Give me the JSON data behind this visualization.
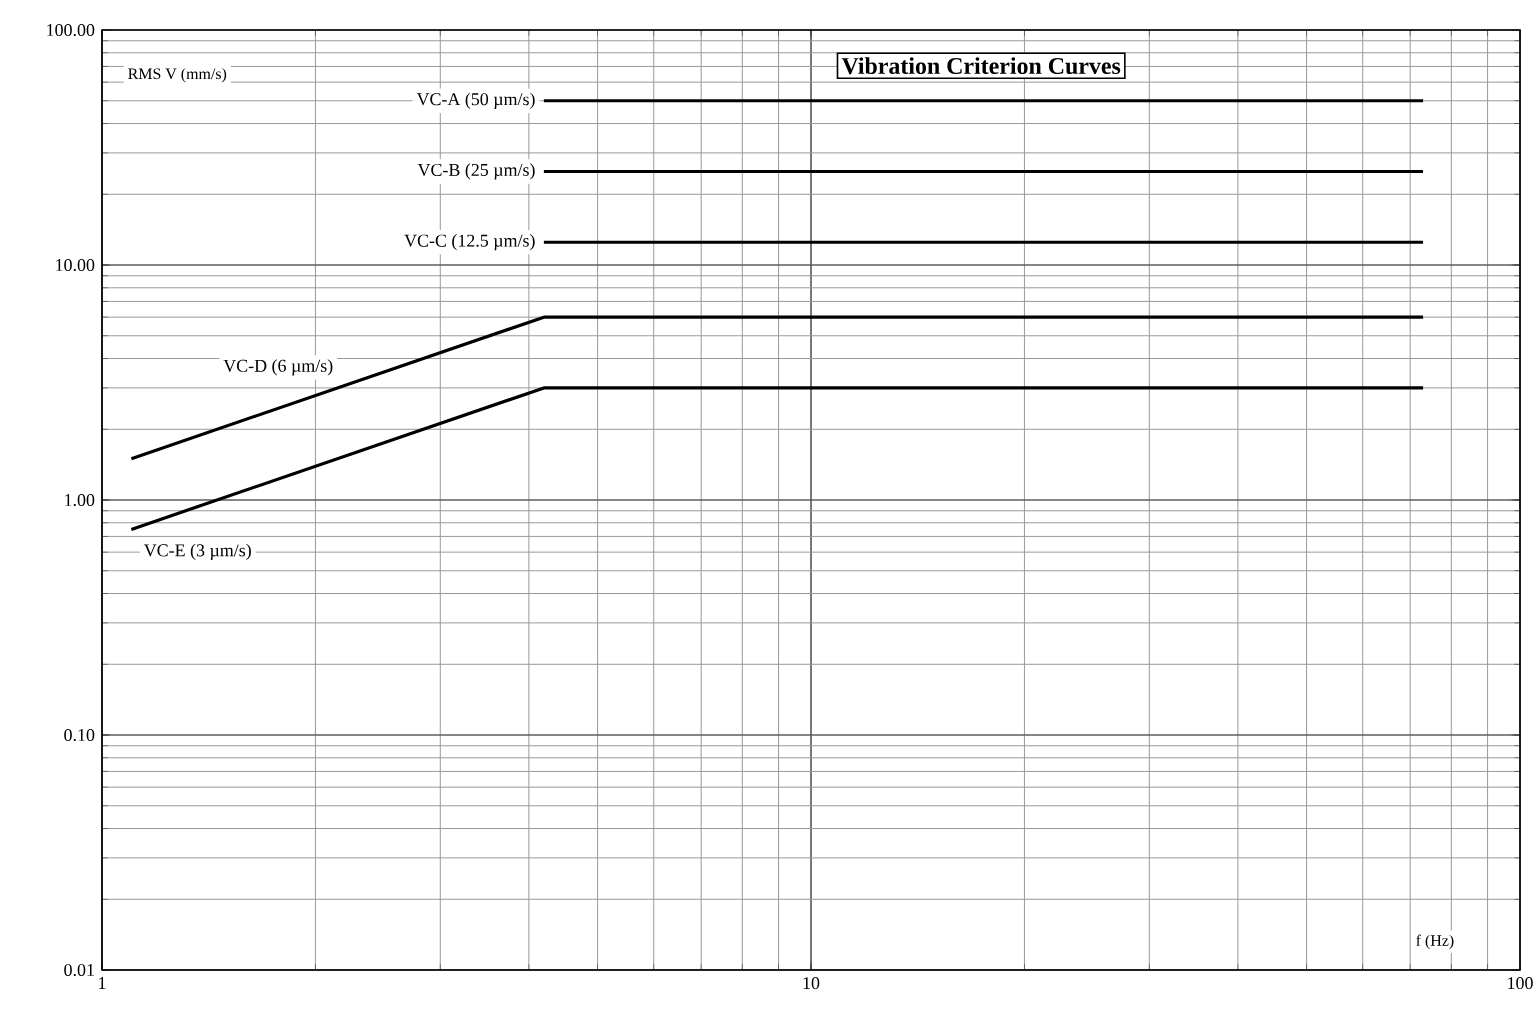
{
  "chart_data": {
    "type": "line",
    "title": "Vibration Criterion Curves",
    "xlabel": "f (Hz)",
    "ylabel": "RMS V (mm/s)",
    "log": "xy",
    "grid": true,
    "xlim": [
      1,
      100
    ],
    "ylim": [
      0.01,
      100
    ],
    "xticks": [
      1,
      10,
      100
    ],
    "yticks": [
      {
        "value": 0.01,
        "label": "0.01"
      },
      {
        "value": 0.1,
        "label": "0.10"
      },
      {
        "value": 1,
        "label": "1.00"
      },
      {
        "value": 10,
        "label": "10.00"
      },
      {
        "value": 100,
        "label": "100.00"
      }
    ],
    "series": [
      {
        "name": "VC-A (50 µm/s)",
        "color": "#000000",
        "x": [
          4.2,
          73
        ],
        "values": [
          50,
          50
        ]
      },
      {
        "name": "VC-B (25 µm/s)",
        "color": "#000000",
        "x": [
          4.2,
          73
        ],
        "values": [
          25,
          25
        ]
      },
      {
        "name": "VC-C (12.5 µm/s)",
        "color": "#000000",
        "x": [
          4.2,
          73
        ],
        "values": [
          12.5,
          12.5
        ]
      },
      {
        "name": "VC-D (6 µm/s)",
        "color": "#000000",
        "x": [
          1.1,
          4.2,
          73
        ],
        "values": [
          1.5,
          6,
          6
        ]
      },
      {
        "name": "VC-E (3 µm/s)",
        "color": "#000000",
        "x": [
          1.1,
          4.2,
          73
        ],
        "values": [
          0.75,
          3,
          3
        ]
      }
    ]
  }
}
